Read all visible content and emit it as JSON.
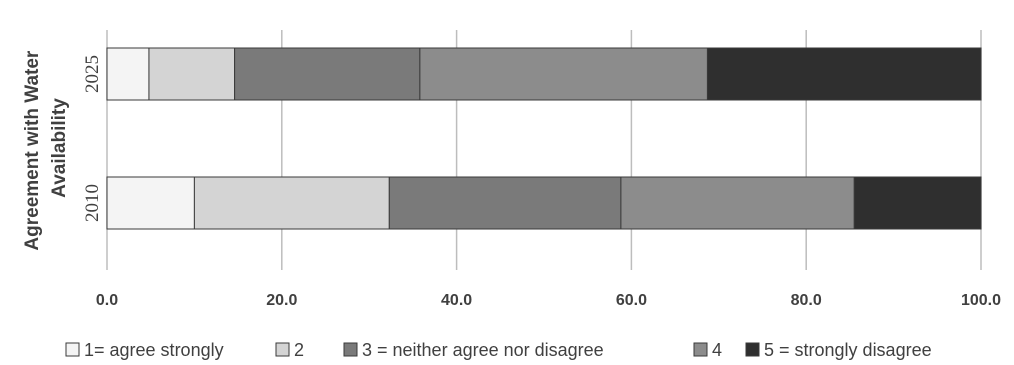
{
  "chart_data": {
    "type": "bar",
    "orientation": "horizontal",
    "stacked": true,
    "categories": [
      "2025",
      "2010"
    ],
    "ylabel": [
      "Agreement with Water",
      "Availability"
    ],
    "xlabel": "",
    "xlim": [
      0,
      100
    ],
    "xticks": [
      "0.0",
      "20.0",
      "40.0",
      "60.0",
      "80.0",
      "100.0"
    ],
    "grid": true,
    "legend_position": "bottom",
    "series": [
      {
        "name": "1= agree strongly",
        "color": "#f4f4f4",
        "values": [
          4.8,
          10.0
        ]
      },
      {
        "name": "2",
        "color": "#d4d4d4",
        "values": [
          9.8,
          22.3
        ]
      },
      {
        "name": "3 = neither agree nor disagree",
        "color": "#7a7a7a",
        "values": [
          21.2,
          26.5
        ]
      },
      {
        "name": "4",
        "color": "#8c8c8c",
        "values": [
          32.9,
          26.7
        ]
      },
      {
        "name": "5 = strongly disagree",
        "color": "#2f2f2f",
        "values": [
          31.3,
          14.5
        ]
      }
    ]
  }
}
